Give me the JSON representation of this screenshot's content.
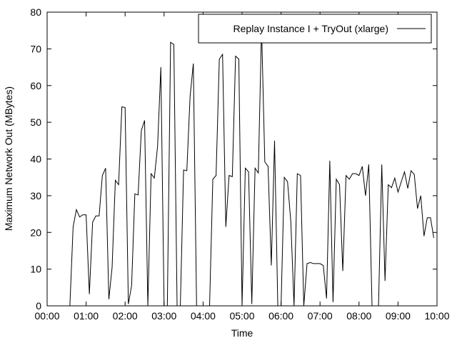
{
  "chart_data": {
    "type": "line",
    "title": "",
    "xlabel": "Time",
    "ylabel": "Maximum Network Out (MBytes)",
    "x_unit": "hh:mm",
    "xlim": [
      "00:00",
      "10:00"
    ],
    "ylim": [
      0,
      80
    ],
    "x_ticks": [
      "00:00",
      "01:00",
      "02:00",
      "03:00",
      "04:00",
      "05:00",
      "06:00",
      "07:00",
      "08:00",
      "09:00",
      "10:00"
    ],
    "y_ticks": [
      "0",
      "10",
      "20",
      "30",
      "40",
      "50",
      "60",
      "70",
      "80"
    ],
    "grid": false,
    "legend_position": "top-right",
    "series": [
      {
        "name": "Replay Instance I + TryOut (xlarge)",
        "color": "#000000",
        "points": [
          [
            "00:35",
            0
          ],
          [
            "00:40",
            21.5
          ],
          [
            "00:45",
            26.2
          ],
          [
            "00:50",
            24.2
          ],
          [
            "00:55",
            24.8
          ],
          [
            "01:00",
            24.8
          ],
          [
            "01:05",
            3.2
          ],
          [
            "01:10",
            22.8
          ],
          [
            "01:15",
            24.5
          ],
          [
            "01:20",
            24.5
          ],
          [
            "01:25",
            35.5
          ],
          [
            "01:30",
            37.5
          ],
          [
            "01:35",
            1.8
          ],
          [
            "01:40",
            10.5
          ],
          [
            "01:45",
            34.2
          ],
          [
            "01:50",
            33.0
          ],
          [
            "01:55",
            54.2
          ],
          [
            "02:00",
            54.0
          ],
          [
            "02:05",
            0.5
          ],
          [
            "02:10",
            5.5
          ],
          [
            "02:15",
            30.5
          ],
          [
            "02:20",
            30.2
          ],
          [
            "02:25",
            47.8
          ],
          [
            "02:30",
            50.5
          ],
          [
            "02:35",
            0
          ],
          [
            "02:40",
            36.0
          ],
          [
            "02:45",
            34.8
          ],
          [
            "02:50",
            43.5
          ],
          [
            "02:55",
            65.0
          ],
          [
            "03:00",
            0
          ],
          [
            "03:05",
            0
          ],
          [
            "03:10",
            71.8
          ],
          [
            "03:15",
            71.2
          ],
          [
            "03:20",
            0
          ],
          [
            "03:25",
            0
          ],
          [
            "03:30",
            37.0
          ],
          [
            "03:35",
            36.8
          ],
          [
            "03:40",
            57.0
          ],
          [
            "03:45",
            66.0
          ],
          [
            "03:50",
            0
          ],
          [
            "03:55",
            0
          ],
          [
            "04:00",
            0
          ],
          [
            "04:05",
            0
          ],
          [
            "04:10",
            0
          ],
          [
            "04:15",
            34.5
          ],
          [
            "04:20",
            35.5
          ],
          [
            "04:25",
            67.2
          ],
          [
            "04:30",
            68.5
          ],
          [
            "04:35",
            21.5
          ],
          [
            "04:40",
            35.5
          ],
          [
            "04:45",
            35.2
          ],
          [
            "04:50",
            68.0
          ],
          [
            "04:55",
            67.2
          ],
          [
            "05:00",
            0
          ],
          [
            "05:05",
            37.5
          ],
          [
            "05:10",
            36.5
          ],
          [
            "05:15",
            0.5
          ],
          [
            "05:20",
            37.5
          ],
          [
            "05:25",
            36.2
          ],
          [
            "05:30",
            76.0
          ],
          [
            "05:35",
            39.2
          ],
          [
            "05:40",
            38.0
          ],
          [
            "05:45",
            11.0
          ],
          [
            "05:50",
            45.0
          ],
          [
            "05:55",
            0
          ],
          [
            "06:00",
            0
          ],
          [
            "06:05",
            35.0
          ],
          [
            "06:10",
            33.8
          ],
          [
            "06:15",
            23.0
          ],
          [
            "06:20",
            0
          ],
          [
            "06:25",
            36.0
          ],
          [
            "06:30",
            35.5
          ],
          [
            "06:35",
            0
          ],
          [
            "06:40",
            11.5
          ],
          [
            "06:45",
            11.8
          ],
          [
            "06:50",
            11.5
          ],
          [
            "06:55",
            11.5
          ],
          [
            "07:00",
            11.5
          ],
          [
            "07:05",
            11.0
          ],
          [
            "07:10",
            2.0
          ],
          [
            "07:15",
            39.5
          ],
          [
            "07:20",
            1.0
          ],
          [
            "07:25",
            34.5
          ],
          [
            "07:30",
            33.0
          ],
          [
            "07:35",
            9.5
          ],
          [
            "07:40",
            35.5
          ],
          [
            "07:45",
            34.5
          ],
          [
            "07:50",
            36.0
          ],
          [
            "07:55",
            36.0
          ],
          [
            "08:00",
            35.5
          ],
          [
            "08:05",
            38.0
          ],
          [
            "08:10",
            30.0
          ],
          [
            "08:15",
            38.5
          ],
          [
            "08:20",
            0
          ],
          [
            "08:25",
            0
          ],
          [
            "08:30",
            0
          ],
          [
            "08:35",
            38.5
          ],
          [
            "08:40",
            6.8
          ],
          [
            "08:45",
            33.0
          ],
          [
            "08:50",
            32.2
          ],
          [
            "08:55",
            34.8
          ],
          [
            "09:00",
            31.0
          ],
          [
            "09:05",
            33.8
          ],
          [
            "09:10",
            36.5
          ],
          [
            "09:15",
            32.0
          ],
          [
            "09:20",
            36.8
          ],
          [
            "09:25",
            35.8
          ],
          [
            "09:30",
            26.5
          ],
          [
            "09:35",
            30.0
          ],
          [
            "09:40",
            19.0
          ],
          [
            "09:45",
            24.0
          ],
          [
            "09:50",
            24.0
          ],
          [
            "09:55",
            18.5
          ]
        ]
      }
    ]
  }
}
